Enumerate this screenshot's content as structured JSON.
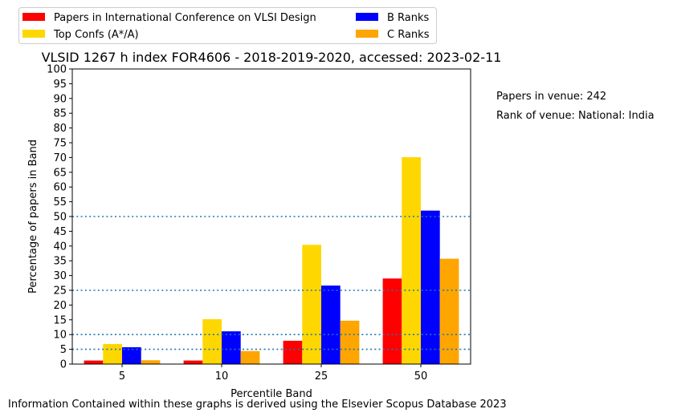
{
  "chart_data": {
    "type": "bar",
    "title": "VLSID 1267 h index FOR4606 - 2018-2019-2020, accessed: 2023-02-11",
    "xlabel": "Percentile Band",
    "ylabel": "Percentage of papers in Band",
    "categories": [
      "5",
      "10",
      "25",
      "50"
    ],
    "ylim": [
      0,
      100
    ],
    "yticks": [
      0,
      5,
      10,
      15,
      20,
      25,
      30,
      35,
      40,
      45,
      50,
      55,
      60,
      65,
      70,
      75,
      80,
      85,
      90,
      95,
      100
    ],
    "reference_lines": [
      5,
      10,
      25,
      50
    ],
    "series": [
      {
        "name": "Papers in International Conference on VLSI Design",
        "color": "#ff0000",
        "values": [
          1.2,
          1.2,
          7.9,
          29.0
        ]
      },
      {
        "name": "Top Confs (A*/A)",
        "color": "#ffd700",
        "values": [
          6.8,
          15.2,
          40.4,
          70.1
        ]
      },
      {
        "name": "B Ranks",
        "color": "#0000ff",
        "values": [
          5.7,
          11.1,
          26.6,
          52.0
        ]
      },
      {
        "name": "C Ranks",
        "color": "#ffa500",
        "values": [
          1.3,
          4.4,
          14.7,
          35.7
        ]
      }
    ],
    "legend_position": "top-left",
    "annotations": [
      "Papers in venue: 242",
      "Rank of venue: National: India"
    ],
    "footer": "Information Contained within these graphs is derived using the Elsevier Scopus Database 2023",
    "reference_line_color": "#1f77b4"
  }
}
